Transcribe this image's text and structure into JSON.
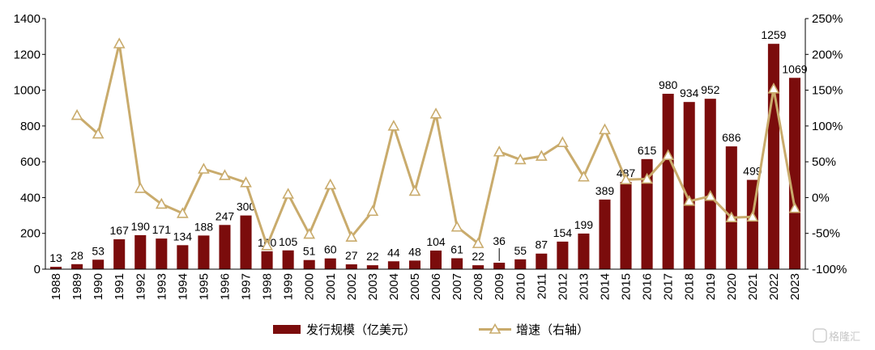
{
  "chart_data": {
    "type": "bar+line",
    "categories": [
      "1988",
      "1989",
      "1990",
      "1991",
      "1992",
      "1993",
      "1994",
      "1995",
      "1996",
      "1997",
      "1998",
      "1999",
      "2000",
      "2001",
      "2002",
      "2003",
      "2004",
      "2005",
      "2006",
      "2007",
      "2008",
      "2009",
      "2010",
      "2011",
      "2012",
      "2013",
      "2014",
      "2015",
      "2016",
      "2017",
      "2018",
      "2019",
      "2020",
      "2021",
      "2022",
      "2023"
    ],
    "series": [
      {
        "name": "发行规模（亿美元）",
        "kind": "bar",
        "axis": "left",
        "color": "#7b0c0c",
        "values": [
          13,
          28,
          53,
          167,
          190,
          171,
          134,
          188,
          247,
          300,
          100,
          105,
          51,
          60,
          27,
          22,
          44,
          48,
          104,
          61,
          22,
          36,
          55,
          87,
          154,
          199,
          389,
          487,
          615,
          980,
          934,
          952,
          686,
          499,
          1259,
          1069
        ],
        "labels": [
          "13",
          "28",
          "53",
          "167",
          "190",
          "171",
          "134",
          "188",
          "247",
          "300",
          "100",
          "105",
          "51",
          "60",
          "27",
          "22",
          "44",
          "48",
          "104",
          "61",
          "22",
          "36",
          "55",
          "87",
          "154",
          "199",
          "389",
          "487",
          "615",
          "980",
          "934",
          "952",
          "686",
          "499",
          "1259",
          "1069"
        ]
      },
      {
        "name": "增速（右轴）",
        "kind": "line",
        "axis": "right",
        "color": "#c9ab6c",
        "values": [
          null,
          115,
          89,
          215,
          13,
          -9,
          -22,
          40,
          31,
          21,
          -67,
          5,
          -51,
          18,
          -55,
          -19,
          100,
          9,
          117,
          -41,
          -64,
          64,
          53,
          58,
          77,
          29,
          95,
          25,
          26,
          59,
          -5,
          2,
          -28,
          -27,
          152,
          -15
        ]
      }
    ],
    "left_axis": {
      "min": 0,
      "max": 1400,
      "step": 200,
      "ticks": [
        "0",
        "200",
        "400",
        "600",
        "800",
        "1000",
        "1200",
        "1400"
      ]
    },
    "right_axis": {
      "min": -100,
      "max": 250,
      "step": 50,
      "ticks": [
        "-100%",
        "-50%",
        "0%",
        "50%",
        "100%",
        "150%",
        "200%",
        "250%"
      ]
    },
    "legend_position": "bottom",
    "grid": false,
    "watermark": "格隆汇"
  }
}
